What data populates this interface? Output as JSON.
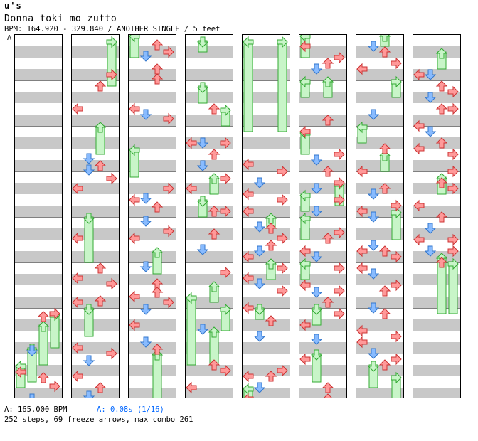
{
  "header": {
    "artist": "u's",
    "title": "Donna toki mo zutto",
    "bpm_info": "BPM: 164.920 - 329.840 / ANOTHER SINGLE / 5 feet",
    "lane_marker": "A"
  },
  "footer": {
    "bpm": "A: 165.000 BPM",
    "speed": "A: 0.08s (1/16)",
    "stats": "252 steps, 69 freeze arrows, max combo 261"
  },
  "colors": {
    "left": "#ff9999",
    "right": "#ff9999",
    "down": "#88bbff",
    "up": "#ff9999",
    "freeze": "#c8f5c8",
    "freeze_border": "#33aa33",
    "band": "#c8c8c8"
  },
  "icons": [
    "left-arrow-icon",
    "down-arrow-icon",
    "up-arrow-icon",
    "right-arrow-icon",
    "freeze-arrow-icon"
  ],
  "chart": {
    "lanes": [
      "left",
      "down",
      "up",
      "right"
    ],
    "columns": 8,
    "beats_per_column": 16,
    "step_resolution": "1/16"
  }
}
